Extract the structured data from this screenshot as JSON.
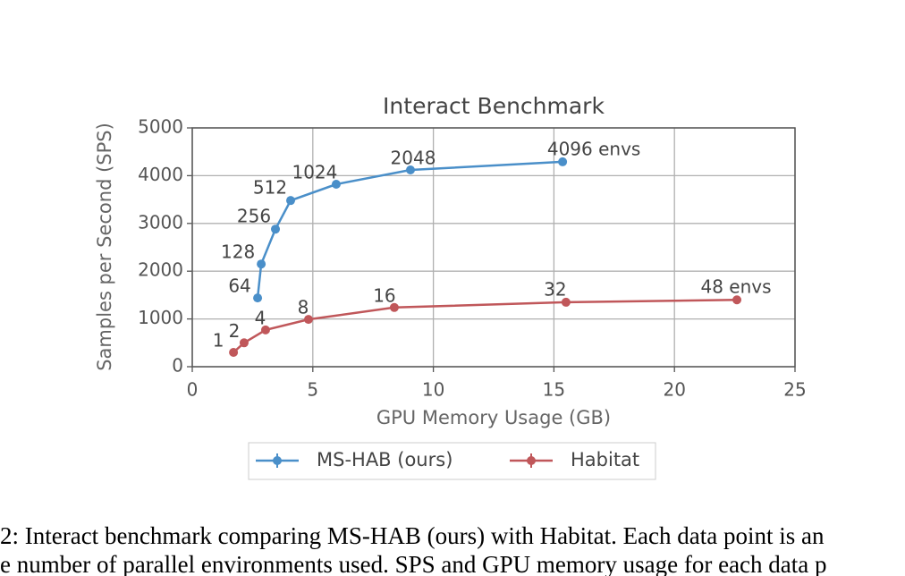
{
  "chart_data": {
    "type": "line",
    "title": "Interact Benchmark",
    "x_label": "GPU Memory Usage (GB)",
    "y_label": "Samples per Second (SPS)",
    "xlim": [
      0,
      25
    ],
    "xticks": [
      0,
      5,
      10,
      15,
      20,
      25
    ],
    "ylim": [
      0,
      5000
    ],
    "yticks": [
      0,
      1000,
      2000,
      3000,
      4000,
      5000
    ],
    "grid": true,
    "legend": "bottom",
    "series": [
      {
        "name": "MS-HAB (ours)",
        "color": "#4a8fc9",
        "x": [
          2.71,
          2.86,
          3.45,
          4.08,
          5.97,
          9.05,
          15.36
        ],
        "values": [
          1440,
          2150,
          2880,
          3480,
          3820,
          4120,
          4290
        ],
        "point_labels": [
          "64",
          "128",
          "256",
          "512",
          "1024",
          "2048",
          "4096 envs"
        ]
      },
      {
        "name": "Habitat",
        "color": "#c0575a",
        "x": [
          1.71,
          2.15,
          3.04,
          4.82,
          8.38,
          15.5,
          22.59
        ],
        "values": [
          300,
          500,
          770,
          990,
          1240,
          1350,
          1400
        ],
        "point_labels": [
          "1",
          "2",
          "4",
          "8",
          "16",
          "32",
          "48 envs"
        ]
      }
    ],
    "caption": [
      "2: Interact benchmark comparing MS-HAB (ours) with Habitat. Each data point is an",
      "e number of parallel environments used. SPS and GPU memory usage for each data p"
    ]
  }
}
